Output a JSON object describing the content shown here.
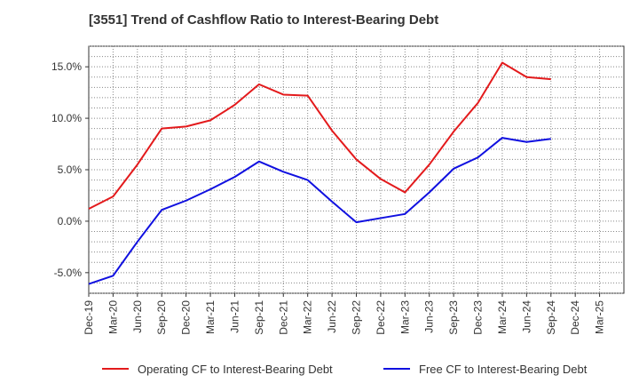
{
  "chart_data": {
    "type": "line",
    "title": "[3551]  Trend of Cashflow Ratio to Interest-Bearing Debt",
    "categories": [
      "Dec-19",
      "Mar-20",
      "Jun-20",
      "Sep-20",
      "Dec-20",
      "Mar-21",
      "Jun-21",
      "Sep-21",
      "Dec-21",
      "Mar-22",
      "Jun-22",
      "Sep-22",
      "Dec-22",
      "Mar-23",
      "Jun-23",
      "Sep-23",
      "Dec-23",
      "Mar-24",
      "Jun-24",
      "Sep-24",
      "Dec-24",
      "Mar-25"
    ],
    "ylim": [
      -7,
      17
    ],
    "yticks": [
      -5,
      0,
      5,
      10,
      15
    ],
    "ytick_labels": [
      "-5.0%",
      "0.0%",
      "5.0%",
      "10.0%",
      "15.0%"
    ],
    "grid": true,
    "legend_position": "bottom",
    "series": [
      {
        "name": "Operating CF to Interest-Bearing Debt",
        "color": "#e31a1c",
        "values": [
          1.2,
          2.4,
          5.5,
          9.0,
          9.2,
          9.8,
          11.3,
          13.3,
          12.3,
          12.2,
          8.8,
          6.0,
          4.1,
          2.8,
          5.5,
          8.7,
          11.5,
          15.4,
          14.0,
          13.8,
          null,
          null
        ]
      },
      {
        "name": "Free CF to Interest-Bearing Debt",
        "color": "#1010e0",
        "values": [
          -6.1,
          -5.3,
          -2.0,
          1.1,
          2.0,
          3.1,
          4.3,
          5.8,
          4.8,
          4.0,
          1.9,
          -0.1,
          0.3,
          0.7,
          2.8,
          5.1,
          6.2,
          8.1,
          7.7,
          8.0,
          null,
          null
        ]
      }
    ]
  }
}
